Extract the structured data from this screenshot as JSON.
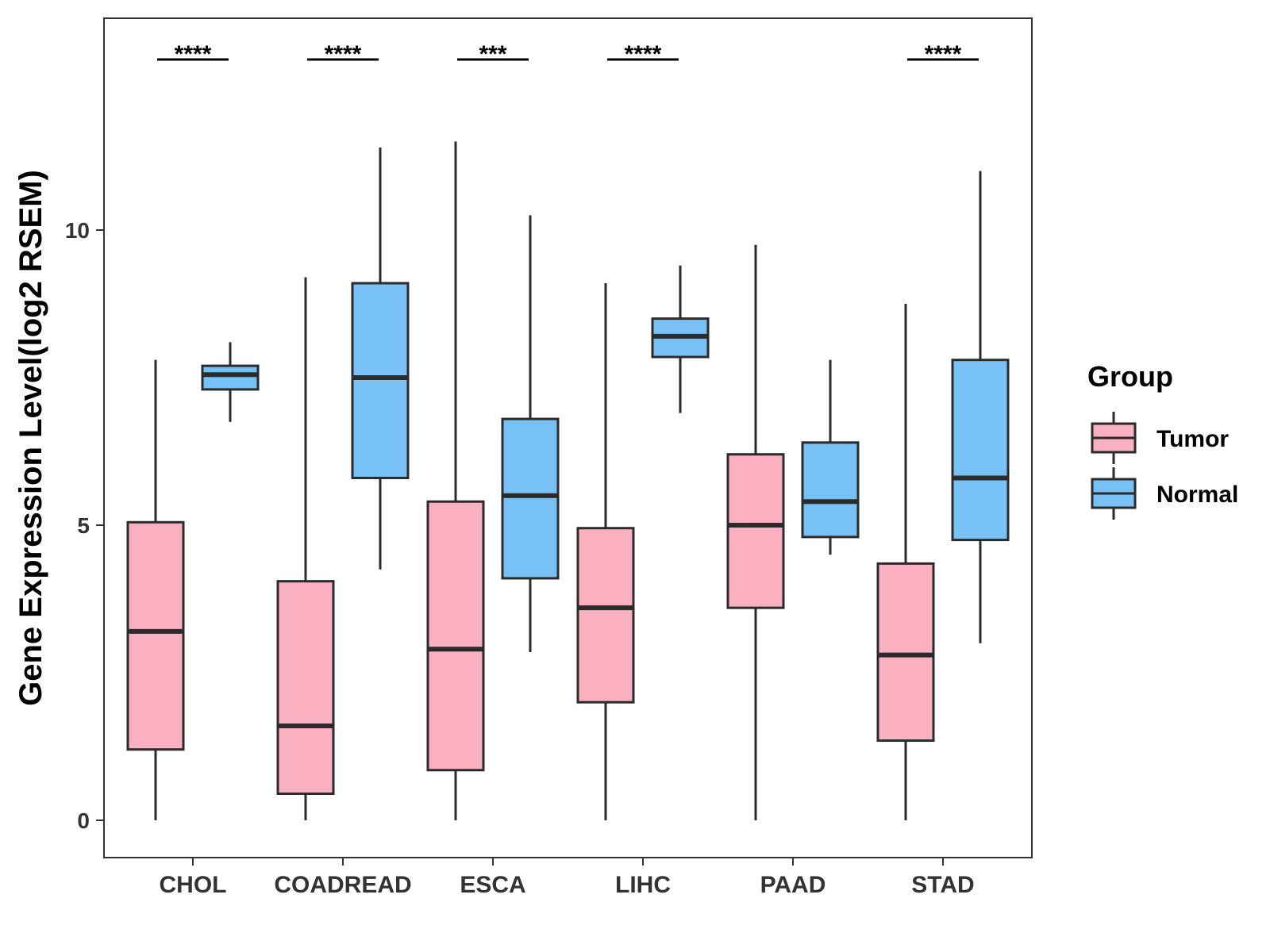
{
  "chart_data": {
    "type": "boxplot",
    "title": "",
    "xlabel": "",
    "ylabel": "Gene Expression Level(log2 RSEM)",
    "ylim": [
      -0.65,
      13.6
    ],
    "yticks": [
      0,
      5,
      10
    ],
    "ytick_labels": [
      "0",
      "5",
      "10"
    ],
    "categories": [
      "CHOL",
      "COADREAD",
      "ESCA",
      "LIHC",
      "PAAD",
      "STAD"
    ],
    "legend": {
      "title": "Group",
      "position": "right",
      "entries": [
        {
          "name": "Tumor",
          "color": "#FBB0C2"
        },
        {
          "name": "Normal",
          "color": "#77C1F7"
        }
      ]
    },
    "series": [
      {
        "name": "Tumor",
        "color": "#FBB0C2",
        "boxes": [
          {
            "category": "CHOL",
            "min": 0.0,
            "q1": 1.2,
            "median": 3.2,
            "q3": 5.05,
            "max": 7.8
          },
          {
            "category": "COADREAD",
            "min": 0.0,
            "q1": 0.45,
            "median": 1.6,
            "q3": 4.05,
            "max": 9.2
          },
          {
            "category": "ESCA",
            "min": 0.0,
            "q1": 0.85,
            "median": 2.9,
            "q3": 5.4,
            "max": 11.5
          },
          {
            "category": "LIHC",
            "min": 0.0,
            "q1": 2.0,
            "median": 3.6,
            "q3": 4.95,
            "max": 9.1
          },
          {
            "category": "PAAD",
            "min": 0.0,
            "q1": 3.6,
            "median": 5.0,
            "q3": 6.2,
            "max": 9.75
          },
          {
            "category": "STAD",
            "min": 0.0,
            "q1": 1.35,
            "median": 2.8,
            "q3": 4.35,
            "max": 8.75
          }
        ]
      },
      {
        "name": "Normal",
        "color": "#77C1F7",
        "boxes": [
          {
            "category": "CHOL",
            "min": 6.75,
            "q1": 7.3,
            "median": 7.55,
            "q3": 7.7,
            "max": 8.1
          },
          {
            "category": "COADREAD",
            "min": 4.25,
            "q1": 5.8,
            "median": 7.5,
            "q3": 9.1,
            "max": 11.4
          },
          {
            "category": "ESCA",
            "min": 2.85,
            "q1": 4.1,
            "median": 5.5,
            "q3": 6.8,
            "max": 10.25
          },
          {
            "category": "LIHC",
            "min": 6.9,
            "q1": 7.85,
            "median": 8.2,
            "q3": 8.5,
            "max": 9.4
          },
          {
            "category": "PAAD",
            "min": 4.5,
            "q1": 4.8,
            "median": 5.4,
            "q3": 6.4,
            "max": 7.8
          },
          {
            "category": "STAD",
            "min": 3.0,
            "q1": 4.75,
            "median": 5.8,
            "q3": 7.8,
            "max": 11.0
          }
        ]
      }
    ],
    "significance": [
      {
        "category": "CHOL",
        "label": "****"
      },
      {
        "category": "COADREAD",
        "label": "****"
      },
      {
        "category": "ESCA",
        "label": "***"
      },
      {
        "category": "LIHC",
        "label": "****"
      },
      {
        "category": "PAAD",
        "label": ""
      },
      {
        "category": "STAD",
        "label": "****"
      }
    ],
    "colors": {
      "tumor": "#FBB0C2",
      "normal": "#77C1F7",
      "outline": "#2b2b2b",
      "axis_text": "#333333"
    }
  }
}
